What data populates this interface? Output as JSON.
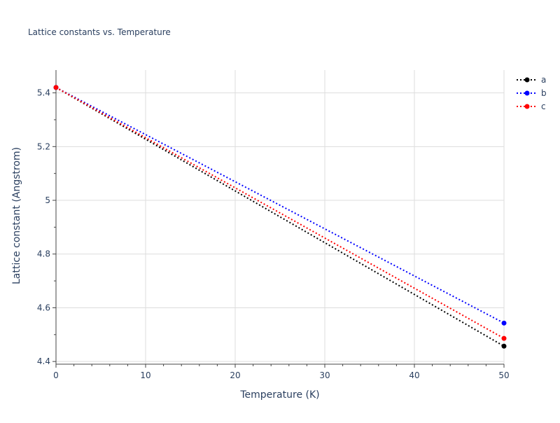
{
  "chart_data": {
    "type": "line",
    "title": "Lattice constants vs. Temperature",
    "xlabel": "Temperature (K)",
    "ylabel": "Lattice constant (Angstrom)",
    "xlim": [
      0,
      50
    ],
    "ylim": [
      4.39,
      5.485
    ],
    "xticks": [
      0,
      10,
      20,
      30,
      40,
      50
    ],
    "xtick_labels": [
      "0",
      "10",
      "20",
      "30",
      "40",
      "50"
    ],
    "yticks": [
      4.4,
      4.6,
      4.8,
      5.0,
      5.2,
      5.4
    ],
    "ytick_labels": [
      "4.4",
      "4.6",
      "4.8",
      "5",
      "5.2",
      "5.4"
    ],
    "grid": true,
    "legend_position": "top-right",
    "x": [
      0,
      50
    ],
    "series": [
      {
        "name": "a",
        "values": [
          5.42,
          4.457
        ],
        "color": "#000000"
      },
      {
        "name": "b",
        "values": [
          5.42,
          4.543
        ],
        "color": "#0000ff"
      },
      {
        "name": "c",
        "values": [
          5.42,
          4.486
        ],
        "color": "#ff0000"
      }
    ]
  }
}
